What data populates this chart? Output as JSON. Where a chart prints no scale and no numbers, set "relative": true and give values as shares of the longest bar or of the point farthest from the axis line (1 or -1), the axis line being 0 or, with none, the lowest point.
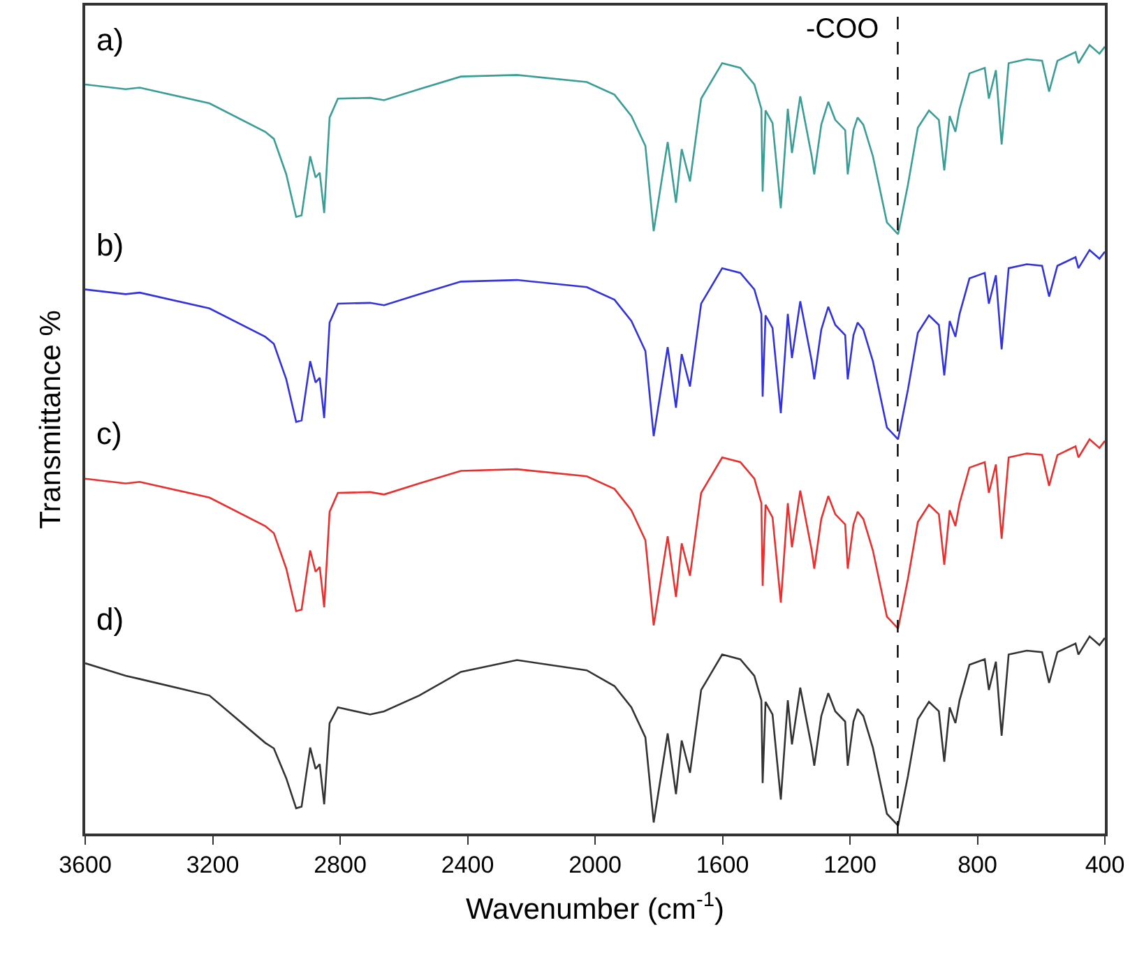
{
  "chart_data": {
    "type": "line",
    "relative": true,
    "xlabel": "Wavenumber (cm$^{-1}$)",
    "ylabel": "Transmittance %",
    "xlim": [
      3600,
      400
    ],
    "xticks": [
      3600,
      3200,
      2800,
      2400,
      2000,
      1600,
      1200,
      800,
      400
    ],
    "x": [
      3600,
      3473,
      3429,
      3210,
      3035,
      3008,
      2969,
      2938,
      2921,
      2894,
      2877,
      2864,
      2850,
      2833,
      2807,
      2706,
      2662,
      2552,
      2421,
      2245,
      2026,
      1939,
      1886,
      1842,
      1816,
      1772,
      1746,
      1728,
      1702,
      1667,
      1601,
      1544,
      1500,
      1478,
      1474,
      1465,
      1443,
      1417,
      1395,
      1382,
      1356,
      1320,
      1312,
      1290,
      1268,
      1246,
      1215,
      1207,
      1189,
      1176,
      1158,
      1128,
      1084,
      1049,
      1018,
      987,
      952,
      921,
      904,
      887,
      869,
      856,
      825,
      777,
      764,
      742,
      724,
      702,
      645,
      597,
      575,
      549,
      492,
      483,
      448,
      417,
      400
    ],
    "series": [
      {
        "name": "a)",
        "color": "#3a9e96",
        "values": [
          0.95,
          0.944,
          0.946,
          0.926,
          0.89,
          0.881,
          0.836,
          0.782,
          0.784,
          0.859,
          0.832,
          0.838,
          0.787,
          0.908,
          0.932,
          0.933,
          0.93,
          0.944,
          0.96,
          0.962,
          0.953,
          0.937,
          0.91,
          0.872,
          0.764,
          0.877,
          0.8,
          0.868,
          0.827,
          0.932,
          0.977,
          0.971,
          0.95,
          0.919,
          0.814,
          0.917,
          0.901,
          0.793,
          0.919,
          0.863,
          0.935,
          0.859,
          0.836,
          0.899,
          0.928,
          0.905,
          0.892,
          0.836,
          0.892,
          0.908,
          0.899,
          0.859,
          0.775,
          0.76,
          0.823,
          0.895,
          0.917,
          0.905,
          0.841,
          0.91,
          0.89,
          0.919,
          0.964,
          0.971,
          0.932,
          0.968,
          0.874,
          0.977,
          0.982,
          0.98,
          0.941,
          0.98,
          0.991,
          0.977,
          1.0,
          0.989,
          0.998
        ]
      },
      {
        "name": "b)",
        "color": "#3333dd",
        "values": [
          0.69,
          0.684,
          0.686,
          0.666,
          0.63,
          0.621,
          0.576,
          0.522,
          0.524,
          0.599,
          0.572,
          0.578,
          0.527,
          0.648,
          0.672,
          0.673,
          0.67,
          0.684,
          0.7,
          0.702,
          0.693,
          0.677,
          0.65,
          0.612,
          0.504,
          0.617,
          0.54,
          0.608,
          0.567,
          0.672,
          0.717,
          0.711,
          0.69,
          0.659,
          0.554,
          0.657,
          0.641,
          0.533,
          0.659,
          0.603,
          0.675,
          0.599,
          0.576,
          0.639,
          0.668,
          0.645,
          0.632,
          0.576,
          0.632,
          0.648,
          0.639,
          0.599,
          0.515,
          0.5,
          0.563,
          0.635,
          0.657,
          0.645,
          0.581,
          0.65,
          0.63,
          0.659,
          0.704,
          0.711,
          0.672,
          0.708,
          0.614,
          0.717,
          0.722,
          0.72,
          0.681,
          0.72,
          0.731,
          0.717,
          0.74,
          0.729,
          0.738
        ]
      },
      {
        "name": "c)",
        "color": "#e8302f",
        "values": [
          0.45,
          0.444,
          0.446,
          0.426,
          0.39,
          0.381,
          0.336,
          0.282,
          0.284,
          0.359,
          0.332,
          0.338,
          0.287,
          0.408,
          0.432,
          0.433,
          0.43,
          0.444,
          0.46,
          0.462,
          0.453,
          0.437,
          0.41,
          0.372,
          0.264,
          0.377,
          0.3,
          0.368,
          0.327,
          0.432,
          0.477,
          0.471,
          0.45,
          0.419,
          0.314,
          0.417,
          0.401,
          0.293,
          0.419,
          0.363,
          0.435,
          0.359,
          0.336,
          0.399,
          0.428,
          0.405,
          0.392,
          0.336,
          0.392,
          0.408,
          0.399,
          0.359,
          0.275,
          0.26,
          0.323,
          0.395,
          0.417,
          0.405,
          0.341,
          0.41,
          0.39,
          0.419,
          0.464,
          0.471,
          0.432,
          0.468,
          0.374,
          0.477,
          0.482,
          0.48,
          0.441,
          0.48,
          0.491,
          0.477,
          0.5,
          0.489,
          0.498
        ]
      },
      {
        "name": "d)",
        "color": "#333333",
        "values": [
          0.216,
          0.2,
          0.196,
          0.175,
          0.115,
          0.108,
          0.07,
          0.032,
          0.034,
          0.109,
          0.082,
          0.088,
          0.037,
          0.14,
          0.16,
          0.151,
          0.155,
          0.175,
          0.205,
          0.22,
          0.207,
          0.187,
          0.16,
          0.122,
          0.014,
          0.127,
          0.05,
          0.118,
          0.077,
          0.182,
          0.227,
          0.221,
          0.2,
          0.169,
          0.064,
          0.167,
          0.151,
          0.043,
          0.169,
          0.113,
          0.185,
          0.109,
          0.086,
          0.149,
          0.178,
          0.155,
          0.142,
          0.086,
          0.142,
          0.158,
          0.149,
          0.109,
          0.025,
          0.01,
          0.073,
          0.145,
          0.167,
          0.155,
          0.091,
          0.16,
          0.14,
          0.169,
          0.214,
          0.221,
          0.182,
          0.218,
          0.124,
          0.227,
          0.232,
          0.23,
          0.191,
          0.23,
          0.241,
          0.227,
          0.25,
          0.239,
          0.248
        ]
      }
    ],
    "ref_lines": [
      {
        "axis": "x",
        "value": 1050,
        "label": "-COO",
        "color": "#000000",
        "line_style": "dashed"
      }
    ],
    "legend": false
  }
}
